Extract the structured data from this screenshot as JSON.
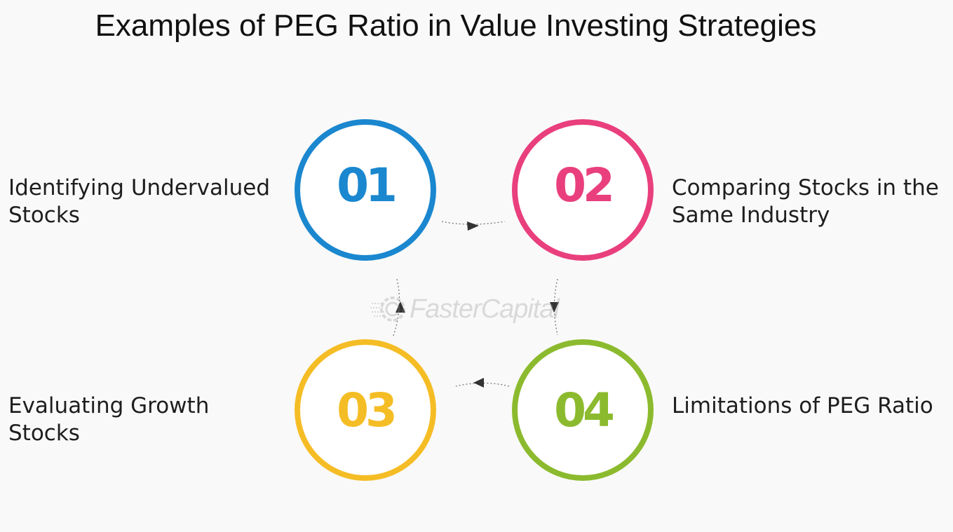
{
  "title": "Examples of PEG Ratio in Value Investing Strategies",
  "watermark": "FasterCapital",
  "steps": [
    {
      "number": "01",
      "label_lines": [
        "Identifying Undervalued",
        "Stocks"
      ],
      "color": "#1a87cf"
    },
    {
      "number": "02",
      "label_lines": [
        "Comparing Stocks in the",
        "Same Industry"
      ],
      "color": "#e93f7d"
    },
    {
      "number": "03",
      "label_lines": [
        "Evaluating Growth",
        "Stocks"
      ],
      "color": "#f5bd25"
    },
    {
      "number": "04",
      "label_lines": [
        "Limitations of PEG Ratio"
      ],
      "color": "#8cba2e"
    }
  ]
}
